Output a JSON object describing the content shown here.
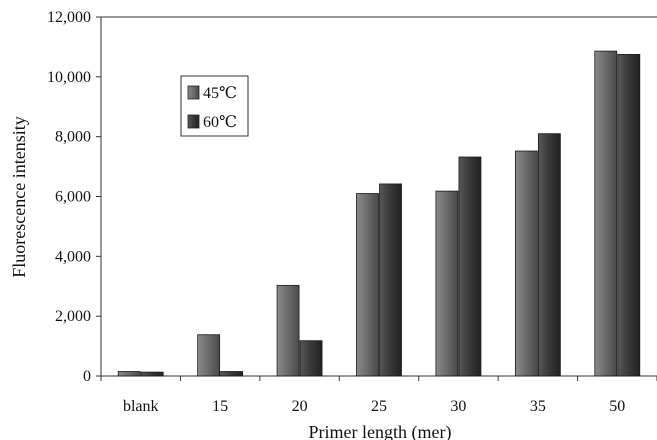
{
  "chart_data": {
    "type": "bar",
    "xlabel": "Primer length (mer)",
    "ylabel": "Fluorescence intensity",
    "categories": [
      "blank",
      "15",
      "20",
      "25",
      "30",
      "35",
      "50"
    ],
    "ylim": [
      0,
      12000
    ],
    "yticks": [
      0,
      2000,
      4000,
      6000,
      8000,
      10000,
      12000
    ],
    "ytick_labels": [
      "0",
      "2,000",
      "4,000",
      "6,000",
      "8,000",
      "10,000",
      "12,000"
    ],
    "grid": false,
    "legend_position": "upper-left",
    "series": [
      {
        "name": "45℃",
        "values": [
          150,
          1380,
          3030,
          6100,
          6180,
          7520,
          10860
        ],
        "color": "#6b6b6b"
      },
      {
        "name": "60℃",
        "values": [
          130,
          150,
          1180,
          6420,
          7320,
          8100,
          10750
        ],
        "color": "#3a3a3a"
      }
    ]
  }
}
